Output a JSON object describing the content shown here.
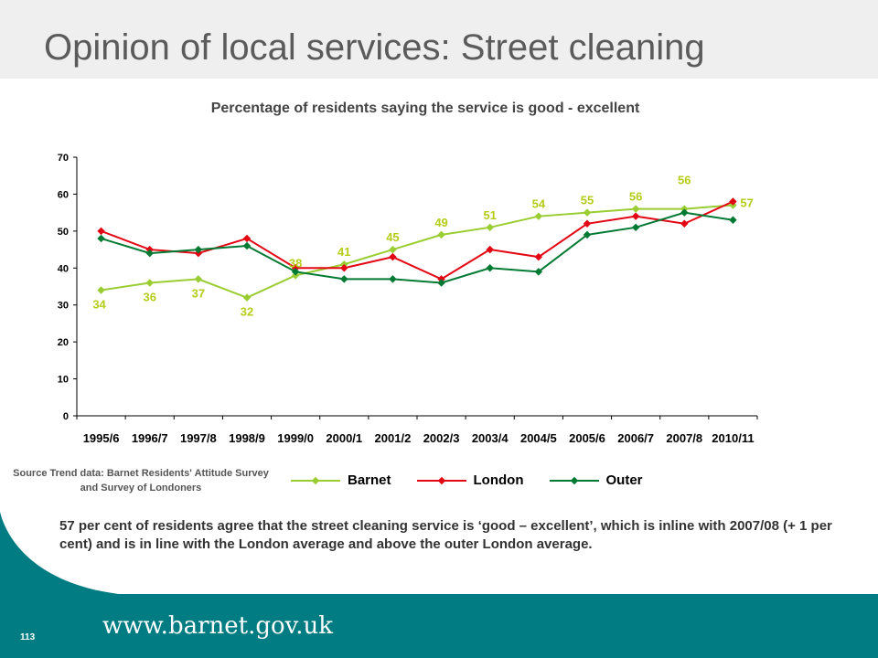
{
  "slide": {
    "title": "Opinion of local services: Street cleaning",
    "page_number": "113",
    "footer_url": "www.barnet.gov.uk"
  },
  "source_note": "Source Trend data:  Barnet  Residents' Attitude  Survey and Survey of Londoners",
  "description": "57 per cent of  residents agree that the  street cleaning service is  ‘good – excellent’, which is inline with 2007/08 (+ 1 per cent) and is in line with the London average and above the outer London average.",
  "colors": {
    "barnet": "#9acd32",
    "london": "#e30613",
    "outer": "#007a33",
    "footer": "#007c82"
  },
  "chart_data": {
    "type": "line",
    "title": "Percentage of residents saying the service is good - excellent",
    "categories": [
      "1995/6",
      "1996/7",
      "1997/8",
      "1998/9",
      "1999/0",
      "2000/1",
      "2001/2",
      "2002/3",
      "2003/4",
      "2004/5",
      "2005/6",
      "2006/7",
      "2007/8",
      "2010/11"
    ],
    "ylim": [
      0,
      70
    ],
    "yticks": [
      0,
      10,
      20,
      30,
      40,
      50,
      60,
      70
    ],
    "legend_position": "bottom",
    "series": [
      {
        "name": "Barnet",
        "color_key": "barnet",
        "values": [
          34,
          36,
          37,
          32,
          38,
          41,
          45,
          49,
          51,
          54,
          55,
          56,
          56,
          57
        ],
        "labeled": true
      },
      {
        "name": "London",
        "color_key": "london",
        "values": [
          50,
          45,
          44,
          48,
          40,
          40,
          43,
          37,
          45,
          43,
          52,
          54,
          52,
          58
        ],
        "labeled": false
      },
      {
        "name": "Outer",
        "color_key": "outer",
        "values": [
          48,
          44,
          45,
          46,
          39,
          37,
          37,
          36,
          40,
          39,
          49,
          51,
          55,
          53
        ],
        "labeled": false
      }
    ]
  }
}
